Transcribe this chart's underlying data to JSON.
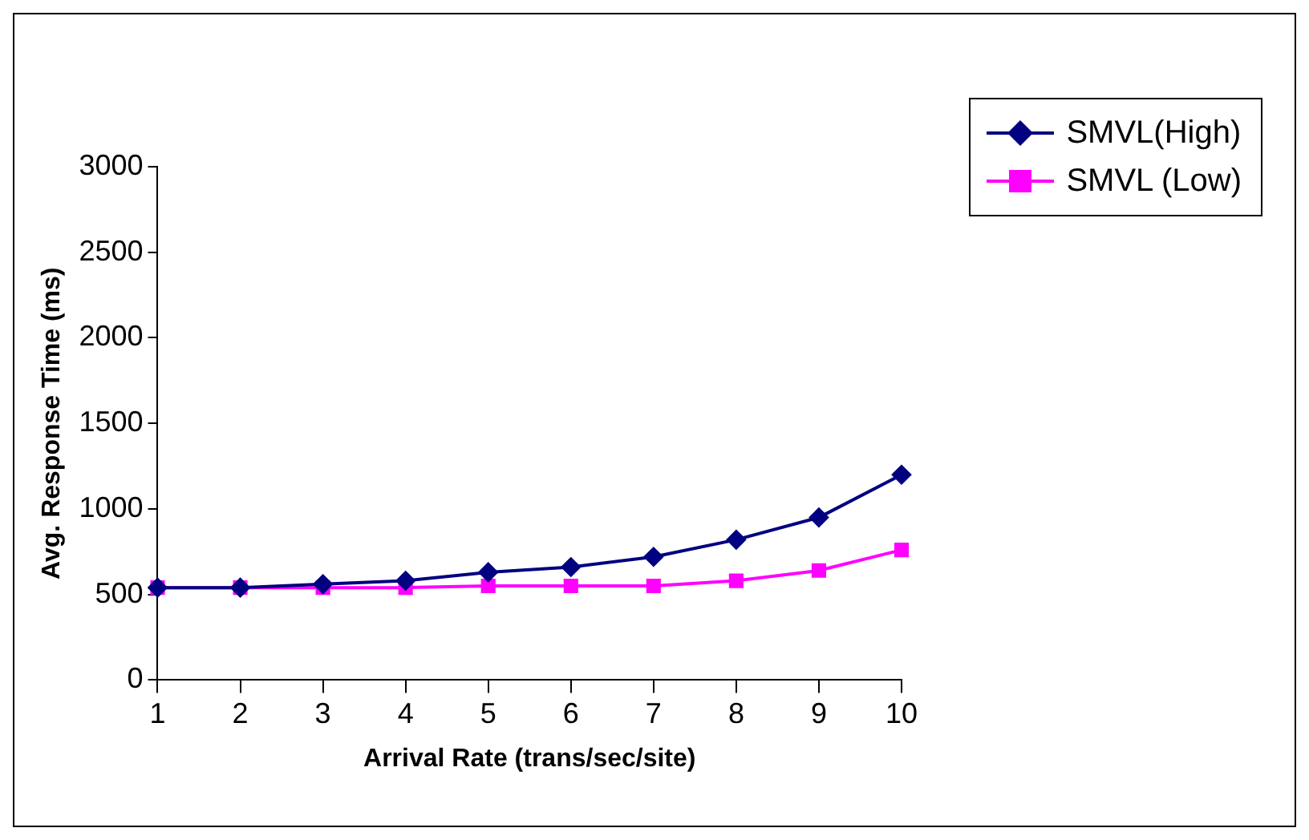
{
  "chart_data": {
    "type": "line",
    "xlabel": "Arrival Rate (trans/sec/site)",
    "ylabel": "Avg. Response Time (ms)",
    "categories": [
      "1",
      "2",
      "3",
      "4",
      "5",
      "6",
      "7",
      "8",
      "9",
      "10"
    ],
    "series": [
      {
        "name": "SMVL(High)",
        "color": "#000080",
        "marker": "diamond",
        "values": [
          540,
          540,
          560,
          580,
          630,
          660,
          720,
          820,
          950,
          1200
        ]
      },
      {
        "name": "SMVL (Low)",
        "color": "#ff00ff",
        "marker": "square",
        "values": [
          540,
          540,
          540,
          540,
          550,
          550,
          550,
          580,
          640,
          760
        ]
      }
    ],
    "ylim": [
      0,
      3000
    ],
    "yticks": [
      0,
      500,
      1000,
      1500,
      2000,
      2500,
      3000
    ],
    "grid": false,
    "legend": "top right",
    "line_style": "solid"
  }
}
